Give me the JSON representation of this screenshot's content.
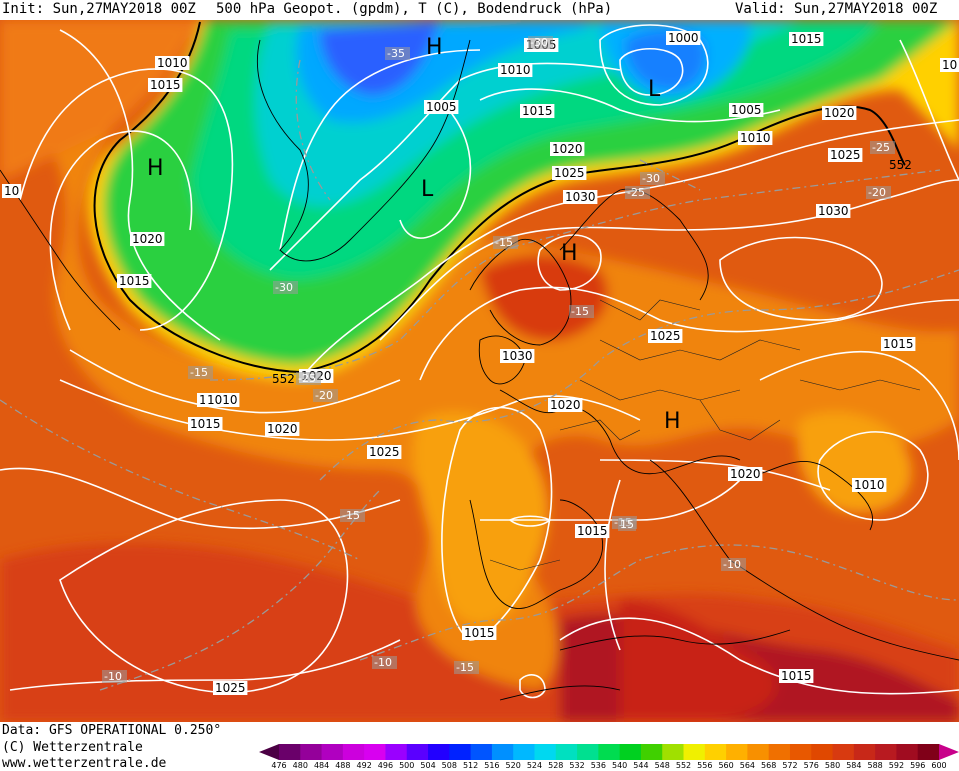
{
  "header": {
    "init": "Init: Sun,27MAY2018 00Z",
    "title": "500 hPa Geopot. (gpdm), T (C), Bodendruck (hPa)",
    "valid": "Valid: Sun,27MAY2018 00Z"
  },
  "footer": {
    "data_source": "Data: GFS OPERATIONAL 0.250°",
    "copyright": "(C) Wetterzentrale",
    "url": "www.wetterzentrale.de"
  },
  "colorbar": {
    "labels": [
      "476",
      "480",
      "484",
      "488",
      "492",
      "496",
      "500",
      "504",
      "508",
      "512",
      "516",
      "520",
      "524",
      "528",
      "532",
      "536",
      "540",
      "544",
      "548",
      "552",
      "556",
      "560",
      "564",
      "568",
      "572",
      "576",
      "580",
      "584",
      "588",
      "592",
      "596",
      "600"
    ],
    "colors": [
      "#4b0044",
      "#6a006a",
      "#94009a",
      "#b000c0",
      "#cc00dd",
      "#d800f0",
      "#9a00ff",
      "#5a00ff",
      "#2200ff",
      "#0022ff",
      "#0055ff",
      "#0090ff",
      "#00b8ff",
      "#00d8f0",
      "#00e0c0",
      "#00e090",
      "#00dc50",
      "#00d020",
      "#40d000",
      "#a0e000",
      "#f0f000",
      "#ffd000",
      "#ffb000",
      "#f89000",
      "#f07000",
      "#e85800",
      "#e04800",
      "#d83a10",
      "#c82818",
      "#b81a20",
      "#a00c20",
      "#800018",
      "#c8008a"
    ]
  },
  "pressure_labels": [
    {
      "text": "1010"
    },
    {
      "text": "1015"
    },
    {
      "text": "10"
    },
    {
      "text": "1020"
    },
    {
      "text": "1015"
    },
    {
      "text": "1015"
    },
    {
      "text": "1010"
    },
    {
      "text": "1005"
    },
    {
      "text": "1005"
    },
    {
      "text": "1010"
    },
    {
      "text": "1015"
    },
    {
      "text": "1020"
    },
    {
      "text": "1025"
    },
    {
      "text": "1030"
    },
    {
      "text": "1000"
    },
    {
      "text": "1005"
    },
    {
      "text": "1010"
    },
    {
      "text": "1015"
    },
    {
      "text": "1020"
    },
    {
      "text": "1025"
    },
    {
      "text": "1030"
    },
    {
      "text": "1025"
    },
    {
      "text": "1030"
    },
    {
      "text": "1020"
    },
    {
      "text": "1020"
    },
    {
      "text": "1010"
    },
    {
      "text": "1015"
    },
    {
      "text": "1020"
    },
    {
      "text": "1025"
    },
    {
      "text": "1015"
    },
    {
      "text": "1015"
    },
    {
      "text": "1010"
    },
    {
      "text": "1020"
    },
    {
      "text": "1015"
    },
    {
      "text": "1025"
    },
    {
      "text": "1015"
    },
    {
      "text": "10"
    }
  ],
  "temp_labels": [
    {
      "text": "-35"
    },
    {
      "text": "-30"
    },
    {
      "text": "-30"
    },
    {
      "text": "-25"
    },
    {
      "text": "-25"
    },
    {
      "text": "-20"
    },
    {
      "text": "-15"
    },
    {
      "text": "-15"
    },
    {
      "text": "-15"
    },
    {
      "text": "-25"
    },
    {
      "text": "-20"
    },
    {
      "text": "-15"
    },
    {
      "text": "-15"
    },
    {
      "text": "-10"
    },
    {
      "text": "-10"
    },
    {
      "text": "-15"
    },
    {
      "text": "-10"
    },
    {
      "text": "15"
    },
    {
      "text": "-30"
    }
  ],
  "centers": [
    {
      "text": "H"
    },
    {
      "text": "H"
    },
    {
      "text": "L"
    },
    {
      "text": "L"
    },
    {
      "text": "H"
    },
    {
      "text": "H"
    }
  ],
  "geopot_label": "552"
}
